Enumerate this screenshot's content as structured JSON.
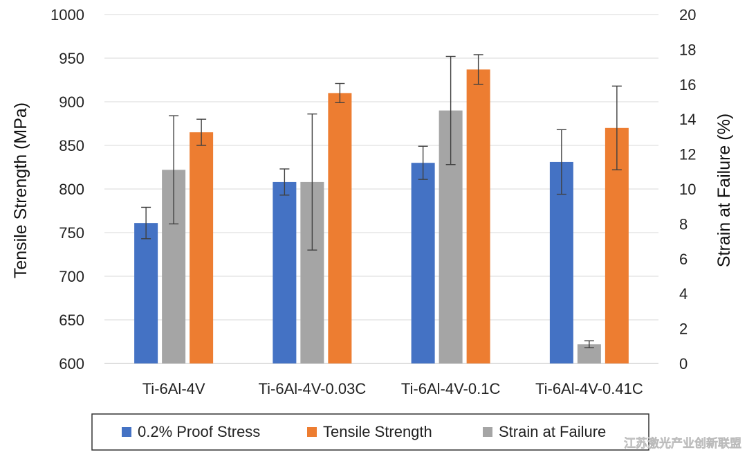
{
  "chart_data": {
    "type": "bar",
    "title": "",
    "categories": [
      "Ti-6Al-4V",
      "Ti-6Al-4V-0.03C",
      "Ti-6Al-4V-0.1C",
      "Ti-6Al-4V-0.41C"
    ],
    "ylabel": "Tensile Strength (MPa)",
    "y2label": "Strain at Failure (%)",
    "ylim": [
      600,
      1000
    ],
    "y2lim": [
      0,
      20
    ],
    "yticks": [
      600,
      650,
      700,
      750,
      800,
      850,
      900,
      950,
      1000
    ],
    "y2ticks": [
      0,
      2,
      4,
      6,
      8,
      10,
      12,
      14,
      16,
      18,
      20
    ],
    "grid": true,
    "legend_position": "bottom",
    "series": [
      {
        "name": "0.2% Proof Stress",
        "axis": "left",
        "color": "#4472C4",
        "values": [
          761,
          808,
          830,
          831
        ],
        "errors": [
          18,
          15,
          19,
          37
        ]
      },
      {
        "name": "Strain at Failure",
        "axis": "right",
        "color": "#A5A5A5",
        "values": [
          11.1,
          10.4,
          14.5,
          1.1
        ],
        "errors": [
          3.1,
          3.9,
          3.1,
          0.2
        ]
      },
      {
        "name": "Tensile Strength",
        "axis": "left",
        "color": "#ED7D31",
        "values": [
          865,
          910,
          937,
          870
        ],
        "errors": [
          15,
          11,
          17,
          48
        ]
      }
    ],
    "legend_order": [
      "0.2% Proof Stress",
      "Tensile Strength",
      "Strain at Failure"
    ]
  },
  "watermark": "江苏激光产业创新联盟"
}
